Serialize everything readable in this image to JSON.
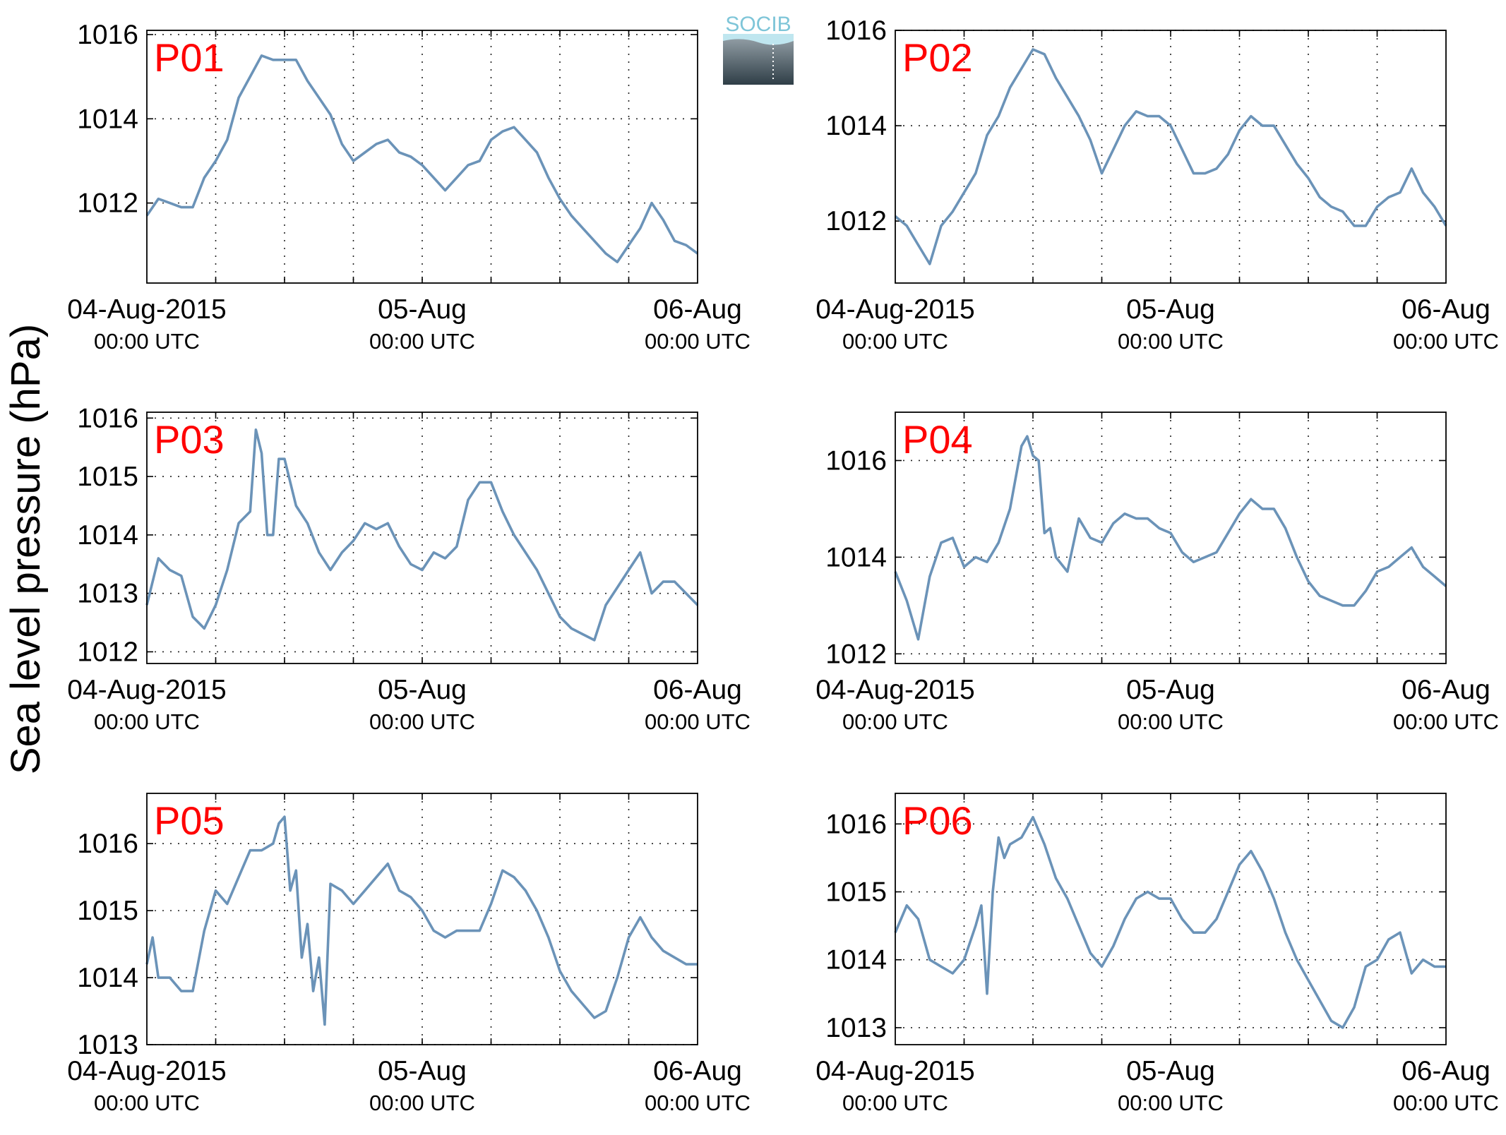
{
  "figure": {
    "ylabel": "Sea level pressure (hPa)",
    "logo_text": "SOCIB",
    "line_color": "#6b93b8",
    "label_color": "#ff0000"
  },
  "chart_data": [
    {
      "type": "line",
      "label": "P01",
      "xticks": [
        {
          "main": "04-Aug-2015",
          "sub": "00:00 UTC"
        },
        {
          "main": "05-Aug",
          "sub": "00:00 UTC"
        },
        {
          "main": "06-Aug",
          "sub": "00:00 UTC"
        }
      ],
      "xlim_hours": [
        0,
        48
      ],
      "ylim": [
        1010.1,
        1016.1
      ],
      "yticks": [
        1012,
        1014,
        1016
      ],
      "grid": true,
      "hours": [
        0,
        1,
        2,
        3,
        4,
        5,
        6,
        7,
        8,
        9,
        10,
        11,
        12,
        13,
        14,
        15,
        16,
        17,
        18,
        19,
        20,
        21,
        22,
        23,
        24,
        25,
        26,
        27,
        28,
        29,
        30,
        31,
        32,
        33,
        34,
        35,
        36,
        37,
        38,
        39,
        40,
        41,
        42,
        43,
        44,
        45,
        46,
        47,
        48
      ],
      "values": [
        1011.7,
        1012.1,
        1012.0,
        1011.9,
        1011.9,
        1012.6,
        1013.0,
        1013.5,
        1014.5,
        1015.0,
        1015.5,
        1015.4,
        1015.4,
        1015.4,
        1014.9,
        1014.5,
        1014.1,
        1013.4,
        1013.0,
        1013.2,
        1013.4,
        1013.5,
        1013.2,
        1013.1,
        1012.9,
        1012.6,
        1012.3,
        1012.6,
        1012.9,
        1013.0,
        1013.5,
        1013.7,
        1013.8,
        1013.5,
        1013.2,
        1012.6,
        1012.1,
        1011.7,
        1011.4,
        1011.1,
        1010.8,
        1010.6,
        1011.0,
        1011.4,
        1012.0,
        1011.6,
        1011.1,
        1011.0,
        1010.8
      ]
    },
    {
      "type": "line",
      "label": "P02",
      "xticks": [
        {
          "main": "04-Aug-2015",
          "sub": "00:00 UTC"
        },
        {
          "main": "05-Aug",
          "sub": "00:00 UTC"
        },
        {
          "main": "06-Aug",
          "sub": "00:00 UTC"
        }
      ],
      "xlim_hours": [
        0,
        48
      ],
      "ylim": [
        1010.7,
        1016.0
      ],
      "yticks": [
        1012,
        1014,
        1016
      ],
      "grid": true,
      "hours": [
        0,
        1,
        2,
        3,
        4,
        5,
        6,
        7,
        8,
        9,
        10,
        11,
        12,
        13,
        14,
        15,
        16,
        17,
        18,
        19,
        20,
        21,
        22,
        23,
        24,
        25,
        26,
        27,
        28,
        29,
        30,
        31,
        32,
        33,
        34,
        35,
        36,
        37,
        38,
        39,
        40,
        41,
        42,
        43,
        44,
        45,
        46,
        47,
        48
      ],
      "values": [
        1012.1,
        1011.9,
        1011.5,
        1011.1,
        1011.9,
        1012.2,
        1012.6,
        1013.0,
        1013.8,
        1014.2,
        1014.8,
        1015.2,
        1015.6,
        1015.5,
        1015.0,
        1014.6,
        1014.2,
        1013.7,
        1013.0,
        1013.5,
        1014.0,
        1014.3,
        1014.2,
        1014.2,
        1014.0,
        1013.5,
        1013.0,
        1013.0,
        1013.1,
        1013.4,
        1013.9,
        1014.2,
        1014.0,
        1014.0,
        1013.6,
        1013.2,
        1012.9,
        1012.5,
        1012.3,
        1012.2,
        1011.9,
        1011.9,
        1012.3,
        1012.5,
        1012.6,
        1013.1,
        1012.6,
        1012.3,
        1011.9
      ]
    },
    {
      "type": "line",
      "label": "P03",
      "xticks": [
        {
          "main": "04-Aug-2015",
          "sub": "00:00 UTC"
        },
        {
          "main": "05-Aug",
          "sub": "00:00 UTC"
        },
        {
          "main": "06-Aug",
          "sub": "00:00 UTC"
        }
      ],
      "xlim_hours": [
        0,
        48
      ],
      "ylim": [
        1011.8,
        1016.1
      ],
      "yticks": [
        1012,
        1013,
        1014,
        1015,
        1016
      ],
      "grid": true,
      "hours": [
        0,
        1,
        2,
        3,
        4,
        5,
        6,
        7,
        8,
        9,
        9.5,
        10,
        10.5,
        11,
        11.5,
        12,
        13,
        14,
        15,
        16,
        17,
        18,
        19,
        20,
        21,
        22,
        23,
        24,
        25,
        26,
        27,
        28,
        29,
        30,
        31,
        32,
        33,
        34,
        35,
        36,
        37,
        38,
        39,
        40,
        41,
        42,
        43,
        44,
        45,
        46,
        47,
        48
      ],
      "values": [
        1012.8,
        1013.6,
        1013.4,
        1013.3,
        1012.6,
        1012.4,
        1012.8,
        1013.4,
        1014.2,
        1014.4,
        1015.8,
        1015.4,
        1014.0,
        1014.0,
        1015.3,
        1015.3,
        1014.5,
        1014.2,
        1013.7,
        1013.4,
        1013.7,
        1013.9,
        1014.2,
        1014.1,
        1014.2,
        1013.8,
        1013.5,
        1013.4,
        1013.7,
        1013.6,
        1013.8,
        1014.6,
        1014.9,
        1014.9,
        1014.4,
        1014.0,
        1013.7,
        1013.4,
        1013.0,
        1012.6,
        1012.4,
        1012.3,
        1012.2,
        1012.8,
        1013.1,
        1013.4,
        1013.7,
        1013.0,
        1013.2,
        1013.2,
        1013.0,
        1012.8
      ]
    },
    {
      "type": "line",
      "label": "P04",
      "xticks": [
        {
          "main": "04-Aug-2015",
          "sub": "00:00 UTC"
        },
        {
          "main": "05-Aug",
          "sub": "00:00 UTC"
        },
        {
          "main": "06-Aug",
          "sub": "00:00 UTC"
        }
      ],
      "xlim_hours": [
        0,
        48
      ],
      "ylim": [
        1011.8,
        1017.0
      ],
      "yticks": [
        1012,
        1014,
        1016
      ],
      "grid": true,
      "hours": [
        0,
        1,
        2,
        3,
        4,
        5,
        6,
        7,
        8,
        9,
        10,
        11,
        11.5,
        12,
        12.5,
        13,
        13.5,
        14,
        15,
        16,
        17,
        18,
        19,
        20,
        21,
        22,
        23,
        24,
        25,
        26,
        27,
        28,
        29,
        30,
        31,
        32,
        33,
        34,
        35,
        36,
        37,
        38,
        39,
        40,
        41,
        42,
        43,
        44,
        45,
        46,
        47,
        48
      ],
      "values": [
        1013.7,
        1013.1,
        1012.3,
        1013.6,
        1014.3,
        1014.4,
        1013.8,
        1014.0,
        1013.9,
        1014.3,
        1015.0,
        1016.3,
        1016.5,
        1016.1,
        1016.0,
        1014.5,
        1014.6,
        1014.0,
        1013.7,
        1014.8,
        1014.4,
        1014.3,
        1014.7,
        1014.9,
        1014.8,
        1014.8,
        1014.6,
        1014.5,
        1014.1,
        1013.9,
        1014.0,
        1014.1,
        1014.5,
        1014.9,
        1015.2,
        1015.0,
        1015.0,
        1014.6,
        1014.0,
        1013.5,
        1013.2,
        1013.1,
        1013.0,
        1013.0,
        1013.3,
        1013.7,
        1013.8,
        1014.0,
        1014.2,
        1013.8,
        1013.6,
        1013.4
      ]
    },
    {
      "type": "line",
      "label": "P05",
      "xticks": [
        {
          "main": "04-Aug-2015",
          "sub": "00:00 UTC"
        },
        {
          "main": "05-Aug",
          "sub": "00:00 UTC"
        },
        {
          "main": "06-Aug",
          "sub": "00:00 UTC"
        }
      ],
      "xlim_hours": [
        0,
        48
      ],
      "ylim": [
        1013.0,
        1016.75
      ],
      "yticks": [
        1013,
        1014,
        1015,
        1016
      ],
      "grid": true,
      "hours": [
        0,
        0.5,
        1,
        2,
        3,
        4,
        5,
        6,
        7,
        8,
        9,
        10,
        11,
        11.5,
        12,
        12.5,
        13,
        13.5,
        14,
        14.5,
        15,
        15.5,
        16,
        17,
        18,
        19,
        20,
        21,
        22,
        23,
        24,
        25,
        26,
        27,
        28,
        29,
        30,
        31,
        32,
        33,
        34,
        35,
        36,
        37,
        38,
        39,
        40,
        41,
        42,
        43,
        44,
        45,
        46,
        47,
        48
      ],
      "values": [
        1014.2,
        1014.6,
        1014.0,
        1014.0,
        1013.8,
        1013.8,
        1014.7,
        1015.3,
        1015.1,
        1015.5,
        1015.9,
        1015.9,
        1016.0,
        1016.3,
        1016.4,
        1015.3,
        1015.6,
        1014.3,
        1014.8,
        1013.8,
        1014.3,
        1013.3,
        1015.4,
        1015.3,
        1015.1,
        1015.3,
        1015.5,
        1015.7,
        1015.3,
        1015.2,
        1015.0,
        1014.7,
        1014.6,
        1014.7,
        1014.7,
        1014.7,
        1015.1,
        1015.6,
        1015.5,
        1015.3,
        1015.0,
        1014.6,
        1014.1,
        1013.8,
        1013.6,
        1013.4,
        1013.5,
        1014.0,
        1014.6,
        1014.9,
        1014.6,
        1014.4,
        1014.3,
        1014.2,
        1014.2
      ]
    },
    {
      "type": "line",
      "label": "P06",
      "xticks": [
        {
          "main": "04-Aug-2015",
          "sub": "00:00 UTC"
        },
        {
          "main": "05-Aug",
          "sub": "00:00 UTC"
        },
        {
          "main": "06-Aug",
          "sub": "00:00 UTC"
        }
      ],
      "xlim_hours": [
        0,
        48
      ],
      "ylim": [
        1012.75,
        1016.45
      ],
      "yticks": [
        1013,
        1014,
        1015,
        1016
      ],
      "grid": true,
      "hours": [
        0,
        1,
        2,
        3,
        4,
        5,
        6,
        7,
        7.5,
        8,
        8.5,
        9,
        9.5,
        10,
        11,
        12,
        13,
        14,
        15,
        16,
        17,
        18,
        19,
        20,
        21,
        22,
        23,
        24,
        25,
        26,
        27,
        28,
        29,
        30,
        31,
        32,
        33,
        34,
        35,
        36,
        37,
        38,
        39,
        40,
        41,
        42,
        43,
        44,
        45,
        46,
        47,
        48
      ],
      "values": [
        1014.4,
        1014.8,
        1014.6,
        1014.0,
        1013.9,
        1013.8,
        1014.0,
        1014.5,
        1014.8,
        1013.5,
        1015.0,
        1015.8,
        1015.5,
        1015.7,
        1015.8,
        1016.1,
        1015.7,
        1015.2,
        1014.9,
        1014.5,
        1014.1,
        1013.9,
        1014.2,
        1014.6,
        1014.9,
        1015.0,
        1014.9,
        1014.9,
        1014.6,
        1014.4,
        1014.4,
        1014.6,
        1015.0,
        1015.4,
        1015.6,
        1015.3,
        1014.9,
        1014.4,
        1014.0,
        1013.7,
        1013.4,
        1013.1,
        1013.0,
        1013.3,
        1013.9,
        1014.0,
        1014.3,
        1014.4,
        1013.8,
        1014.0,
        1013.9,
        1013.9
      ]
    }
  ]
}
